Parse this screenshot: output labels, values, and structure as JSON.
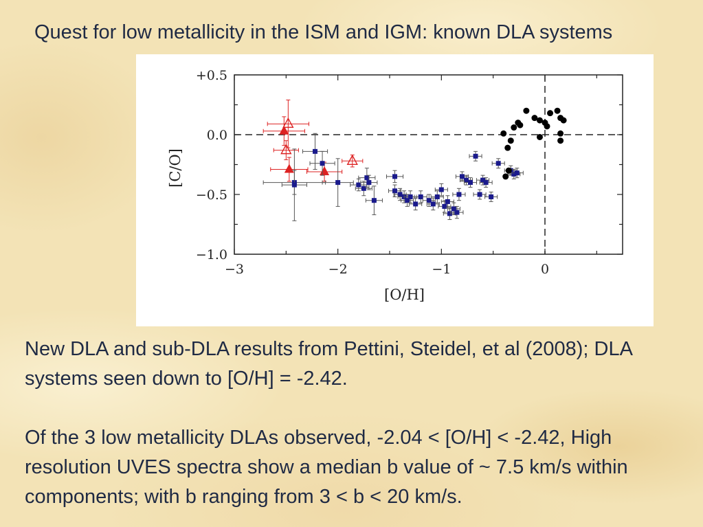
{
  "slide": {
    "title": "Quest for low metallicity in the ISM and IGM: known DLA systems",
    "paragraphs": [
      "New DLA and sub-DLA results from Pettini, Steidel, et al (2008); DLA systems seen down to [O/H] = -2.42.",
      "Of the 3 low metallicity DLAs observed,  -2.04 < [O/H] < -2.42, High resolution UVES spectra show a median b value of ~ 7.5 km/s within components; with b ranging from 3 < b < 20 km/s."
    ]
  },
  "colors": {
    "dla_new": "#dd2222",
    "dla_prev": "#1a1a8c",
    "stars": "#000000",
    "error_bar": "#555555"
  },
  "chart_data": {
    "type": "scatter",
    "xlabel": "[O/H]",
    "ylabel": "[C/O]",
    "xlim": [
      -3,
      0.75
    ],
    "ylim": [
      -1.0,
      0.5
    ],
    "xticks": [
      {
        "v": -3,
        "label": "−3"
      },
      {
        "v": -2,
        "label": "−2"
      },
      {
        "v": -1,
        "label": "−1"
      },
      {
        "v": 0,
        "label": "0"
      }
    ],
    "yticks": [
      {
        "v": 0.5,
        "label": "+0.5"
      },
      {
        "v": 0.0,
        "label": "0.0"
      },
      {
        "v": -0.5,
        "label": "−0.5"
      },
      {
        "v": -1.0,
        "label": "−1.0"
      }
    ],
    "reference_lines": {
      "x": 0,
      "y": 0,
      "style": "dashed"
    },
    "series": [
      {
        "marker": "triangle-filled",
        "color_key": "dla_new",
        "points": [
          {
            "x": -2.52,
            "y": 0.03,
            "xerr": 0.2,
            "yerr": 0.12
          },
          {
            "x": -2.47,
            "y": -0.29,
            "xerr": 0.18,
            "yerr": 0.1
          },
          {
            "x": -2.13,
            "y": -0.31,
            "xerr": 0.17,
            "yerr": 0.08
          }
        ]
      },
      {
        "marker": "triangle-open",
        "color_key": "dla_new",
        "points": [
          {
            "x": -2.48,
            "y": 0.09,
            "xerr": 0.2,
            "yerr": 0.2
          },
          {
            "x": -2.5,
            "y": -0.13,
            "xerr": 0.12,
            "yerr": 0.08
          },
          {
            "x": -1.86,
            "y": -0.22,
            "xerr": 0.1,
            "yerr": 0.05
          }
        ]
      },
      {
        "marker": "square",
        "color_key": "dla_prev",
        "points": [
          {
            "x": -2.42,
            "y": -0.4,
            "xerr": 0.3,
            "yerr": 0.1
          },
          {
            "x": -2.42,
            "y": -0.42,
            "xerr": 0.12,
            "yerr": 0.3
          },
          {
            "x": -2.22,
            "y": -0.14,
            "xerr": 0.12,
            "yerr": 0.15
          },
          {
            "x": -2.15,
            "y": -0.24,
            "xerr": 0.12,
            "yerr": 0.1
          },
          {
            "x": -2.0,
            "y": -0.4,
            "xerr": 0.15,
            "yerr": 0.2
          },
          {
            "x": -1.8,
            "y": -0.42,
            "xerr": 0.08,
            "yerr": 0.05
          },
          {
            "x": -1.75,
            "y": -0.45,
            "xerr": 0.08,
            "yerr": 0.06
          },
          {
            "x": -1.72,
            "y": -0.36,
            "xerr": 0.08,
            "yerr": 0.08
          },
          {
            "x": -1.7,
            "y": -0.4,
            "xerr": 0.08,
            "yerr": 0.06
          },
          {
            "x": -1.65,
            "y": -0.55,
            "xerr": 0.08,
            "yerr": 0.12
          },
          {
            "x": -1.45,
            "y": -0.35,
            "xerr": 0.08,
            "yerr": 0.05
          },
          {
            "x": -1.45,
            "y": -0.47,
            "xerr": 0.06,
            "yerr": 0.05
          },
          {
            "x": -1.4,
            "y": -0.5,
            "xerr": 0.06,
            "yerr": 0.05
          },
          {
            "x": -1.36,
            "y": -0.52,
            "xerr": 0.06,
            "yerr": 0.05
          },
          {
            "x": -1.33,
            "y": -0.55,
            "xerr": 0.06,
            "yerr": 0.05
          },
          {
            "x": -1.3,
            "y": -0.52,
            "xerr": 0.06,
            "yerr": 0.05
          },
          {
            "x": -1.25,
            "y": -0.58,
            "xerr": 0.06,
            "yerr": 0.05
          },
          {
            "x": -1.2,
            "y": -0.52,
            "xerr": 0.06,
            "yerr": 0.05
          },
          {
            "x": -1.12,
            "y": -0.55,
            "xerr": 0.06,
            "yerr": 0.05
          },
          {
            "x": -1.08,
            "y": -0.58,
            "xerr": 0.06,
            "yerr": 0.05
          },
          {
            "x": -1.04,
            "y": -0.52,
            "xerr": 0.06,
            "yerr": 0.05
          },
          {
            "x": -1.0,
            "y": -0.46,
            "xerr": 0.06,
            "yerr": 0.05
          },
          {
            "x": -0.97,
            "y": -0.6,
            "xerr": 0.06,
            "yerr": 0.05
          },
          {
            "x": -0.94,
            "y": -0.56,
            "xerr": 0.06,
            "yerr": 0.05
          },
          {
            "x": -0.92,
            "y": -0.66,
            "xerr": 0.06,
            "yerr": 0.05
          },
          {
            "x": -0.88,
            "y": -0.62,
            "xerr": 0.06,
            "yerr": 0.05
          },
          {
            "x": -0.85,
            "y": -0.65,
            "xerr": 0.06,
            "yerr": 0.05
          },
          {
            "x": -0.83,
            "y": -0.5,
            "xerr": 0.06,
            "yerr": 0.05
          },
          {
            "x": -0.8,
            "y": -0.35,
            "xerr": 0.06,
            "yerr": 0.04
          },
          {
            "x": -0.76,
            "y": -0.38,
            "xerr": 0.06,
            "yerr": 0.04
          },
          {
            "x": -0.72,
            "y": -0.4,
            "xerr": 0.06,
            "yerr": 0.04
          },
          {
            "x": -0.67,
            "y": -0.18,
            "xerr": 0.06,
            "yerr": 0.04
          },
          {
            "x": -0.63,
            "y": -0.5,
            "xerr": 0.06,
            "yerr": 0.04
          },
          {
            "x": -0.6,
            "y": -0.38,
            "xerr": 0.06,
            "yerr": 0.04
          },
          {
            "x": -0.57,
            "y": -0.4,
            "xerr": 0.06,
            "yerr": 0.04
          },
          {
            "x": -0.52,
            "y": -0.52,
            "xerr": 0.06,
            "yerr": 0.04
          },
          {
            "x": -0.45,
            "y": -0.24,
            "xerr": 0.06,
            "yerr": 0.04
          },
          {
            "x": -0.33,
            "y": -0.3,
            "xerr": 0.06,
            "yerr": 0.04
          },
          {
            "x": -0.3,
            "y": -0.33,
            "xerr": 0.06,
            "yerr": 0.04
          },
          {
            "x": -0.27,
            "y": -0.32,
            "xerr": 0.06,
            "yerr": 0.04
          }
        ]
      },
      {
        "marker": "circle",
        "color_key": "stars",
        "points": [
          {
            "x": -0.4,
            "y": 0.01
          },
          {
            "x": -0.36,
            "y": -0.11
          },
          {
            "x": -0.33,
            "y": -0.05
          },
          {
            "x": -0.3,
            "y": 0.06
          },
          {
            "x": -0.26,
            "y": 0.1
          },
          {
            "x": -0.24,
            "y": 0.08
          },
          {
            "x": -0.18,
            "y": 0.2
          },
          {
            "x": -0.1,
            "y": 0.14
          },
          {
            "x": -0.05,
            "y": 0.12
          },
          {
            "x": 0.0,
            "y": 0.1
          },
          {
            "x": 0.02,
            "y": 0.07
          },
          {
            "x": 0.05,
            "y": 0.18
          },
          {
            "x": 0.12,
            "y": 0.2
          },
          {
            "x": 0.15,
            "y": 0.14
          },
          {
            "x": 0.18,
            "y": 0.12
          },
          {
            "x": 0.15,
            "y": 0.01
          },
          {
            "x": 0.15,
            "y": -0.05
          },
          {
            "x": -0.05,
            "y": -0.02
          },
          {
            "x": -0.38,
            "y": -0.35
          },
          {
            "x": -0.35,
            "y": -0.3
          }
        ]
      }
    ]
  }
}
